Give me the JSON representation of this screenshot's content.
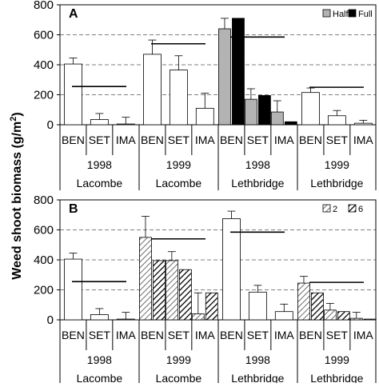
{
  "figure": {
    "ylabel": "Weed shoot biomass (g/m²)",
    "ylabel_parts": [
      "Weed shoot biomass (g/m",
      "2",
      ")"
    ]
  },
  "chart_data": [
    {
      "type": "bar",
      "panel_label": "A",
      "title": "",
      "xlabel": "",
      "ylabel": "Weed shoot biomass (g/m²)",
      "ylim": [
        0,
        800
      ],
      "yticks": [
        0,
        200,
        400,
        600,
        800
      ],
      "grid": "horizontal dashed",
      "legend": {
        "placement": "top-right",
        "entries": [
          {
            "name": "Half",
            "fill": "#b3b3b3",
            "pattern": "solid"
          },
          {
            "name": "Full",
            "fill": "#000000",
            "pattern": "solid"
          }
        ]
      },
      "groups": [
        {
          "year": "1998",
          "site": "Lacombe",
          "threshold": 255,
          "bars": [
            {
              "category": "BEN",
              "value": 405,
              "error": 40
            },
            {
              "category": "SET",
              "value": 35,
              "error": 40
            },
            {
              "category": "IMA",
              "value": 5,
              "error": 45
            }
          ]
        },
        {
          "year": "1999",
          "site": "Lacombe",
          "threshold": 540,
          "bars": [
            {
              "category": "BEN",
              "value": 470,
              "error": 95
            },
            {
              "category": "SET",
              "value": 365,
              "error": 95
            },
            {
              "category": "IMA",
              "value": 110,
              "error": 100
            }
          ]
        },
        {
          "year": "1998",
          "site": "Lethbridge",
          "threshold": 585,
          "bars": [
            {
              "category": "BEN",
              "series": [
                {
                  "name": "Half",
                  "value": 640,
                  "error": 70
                },
                {
                  "name": "Full",
                  "value": 710,
                  "error": 0
                }
              ]
            },
            {
              "category": "SET",
              "series": [
                {
                  "name": "Half",
                  "value": 170,
                  "error": 70
                },
                {
                  "name": "Full",
                  "value": 195,
                  "error": 0
                }
              ]
            },
            {
              "category": "IMA",
              "series": [
                {
                  "name": "Half",
                  "value": 85,
                  "error": 75
                },
                {
                  "name": "Full",
                  "value": 20,
                  "error": 0
                }
              ]
            }
          ]
        },
        {
          "year": "1999",
          "site": "Lethbridge",
          "threshold": 250,
          "bars": [
            {
              "category": "BEN",
              "value": 215,
              "error": 30
            },
            {
              "category": "SET",
              "value": 60,
              "error": 35
            },
            {
              "category": "IMA",
              "value": 10,
              "error": 20
            }
          ]
        }
      ]
    },
    {
      "type": "bar",
      "panel_label": "B",
      "title": "",
      "xlabel": "",
      "ylabel": "Weed shoot biomass (g/m²)",
      "ylim": [
        0,
        800
      ],
      "yticks": [
        0,
        200,
        400,
        600,
        800
      ],
      "grid": "horizontal dashed",
      "legend": {
        "placement": "top-right",
        "entries": [
          {
            "name": "2",
            "fill": "#ffffff",
            "pattern": "light-hatch"
          },
          {
            "name": "6",
            "fill": "#ffffff",
            "pattern": "dark-hatch"
          }
        ]
      },
      "groups": [
        {
          "year": "1998",
          "site": "Lacombe",
          "threshold": 255,
          "bars": [
            {
              "category": "BEN",
              "value": 405,
              "error": 40
            },
            {
              "category": "SET",
              "value": 35,
              "error": 40
            },
            {
              "category": "IMA",
              "value": 5,
              "error": 45
            }
          ]
        },
        {
          "year": "1999",
          "site": "Lacombe",
          "threshold": 540,
          "bars": [
            {
              "category": "BEN",
              "series": [
                {
                  "name": "2",
                  "value": 550,
                  "error": 140
                },
                {
                  "name": "6",
                  "value": 395,
                  "error": 0
                }
              ]
            },
            {
              "category": "SET",
              "series": [
                {
                  "name": "2",
                  "value": 395,
                  "error": 60
                },
                {
                  "name": "6",
                  "value": 335,
                  "error": 0
                }
              ]
            },
            {
              "category": "IMA",
              "series": [
                {
                  "name": "2",
                  "value": 40,
                  "error": 140
                },
                {
                  "name": "6",
                  "value": 180,
                  "error": 0
                }
              ]
            }
          ]
        },
        {
          "year": "1998",
          "site": "Lethbridge",
          "threshold": 585,
          "bars": [
            {
              "category": "BEN",
              "value": 675,
              "error": 50
            },
            {
              "category": "SET",
              "value": 185,
              "error": 45
            },
            {
              "category": "IMA",
              "value": 55,
              "error": 50
            }
          ]
        },
        {
          "year": "1999",
          "site": "Lethbridge",
          "threshold": 250,
          "bars": [
            {
              "category": "BEN",
              "series": [
                {
                  "name": "2",
                  "value": 245,
                  "error": 45
                },
                {
                  "name": "6",
                  "value": 180,
                  "error": 0
                }
              ]
            },
            {
              "category": "SET",
              "series": [
                {
                  "name": "2",
                  "value": 65,
                  "error": 45
                },
                {
                  "name": "6",
                  "value": 55,
                  "error": 0
                }
              ]
            },
            {
              "category": "IMA",
              "series": [
                {
                  "name": "2",
                  "value": 10,
                  "error": 40
                },
                {
                  "name": "6",
                  "value": 5,
                  "error": 0
                }
              ]
            }
          ]
        }
      ]
    }
  ]
}
